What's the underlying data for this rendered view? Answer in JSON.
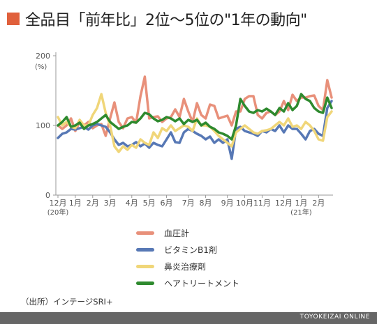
{
  "title": "全品目「前年比」2位～5位の\"1年の動向\"",
  "title_square_color": "#e0603c",
  "source": "（出所）インテージSRI+",
  "footer": "TOYOKEIZAI ONLINE",
  "chart_data": {
    "type": "line",
    "ylim": [
      0,
      200
    ],
    "yticks": [
      0,
      100,
      200
    ],
    "yunit": "(%)",
    "grid": false,
    "legend_placement": "bottom",
    "x_labels": [
      {
        "label": "12月",
        "sub": "(20年)",
        "idx": 0
      },
      {
        "label": "1月",
        "idx": 4
      },
      {
        "label": "2月",
        "idx": 8
      },
      {
        "label": "3月",
        "idx": 12
      },
      {
        "label": "4月",
        "idx": 17
      },
      {
        "label": "5月",
        "idx": 21
      },
      {
        "label": "6月",
        "idx": 25
      },
      {
        "label": "7月",
        "idx": 30
      },
      {
        "label": "8月",
        "idx": 34
      },
      {
        "label": "9月",
        "idx": 39
      },
      {
        "label": "10月",
        "idx": 43
      },
      {
        "label": "11月",
        "idx": 47
      },
      {
        "label": "12月",
        "idx": 52
      },
      {
        "label": "1月",
        "sub": "(21年)",
        "idx": 56
      },
      {
        "label": "2月",
        "idx": 60
      }
    ],
    "series": [
      {
        "name": "血圧計",
        "color": "#e8907a",
        "values": [
          100,
          95,
          100,
          110,
          92,
          105,
          100,
          105,
          96,
          100,
          102,
          85,
          110,
          133,
          105,
          96,
          110,
          112,
          104,
          142,
          170,
          110,
          112,
          113,
          105,
          110,
          112,
          123,
          112,
          138,
          120,
          105,
          132,
          115,
          110,
          130,
          128,
          110,
          112,
          114,
          100,
          120,
          120,
          138,
          142,
          142,
          115,
          110,
          118,
          120,
          115,
          120,
          135,
          122,
          144,
          135,
          140,
          140,
          142,
          143,
          128,
          122,
          165,
          140
        ]
      },
      {
        "name": "ビタミンB1剤",
        "color": "#5778b5",
        "values": [
          82,
          88,
          90,
          95,
          94,
          96,
          98,
          94,
          100,
          102,
          100,
          98,
          90,
          80,
          72,
          75,
          70,
          72,
          76,
          70,
          74,
          68,
          75,
          72,
          70,
          80,
          90,
          76,
          75,
          90,
          95,
          92,
          88,
          85,
          80,
          84,
          75,
          80,
          75,
          80,
          52,
          95,
          98,
          92,
          90,
          88,
          85,
          92,
          90,
          95,
          92,
          100,
          90,
          100,
          95,
          95,
          88,
          80,
          92,
          95,
          88,
          85,
          125,
          135
        ]
      },
      {
        "name": "鼻炎治療剤",
        "color": "#f0d679",
        "values": [
          112,
          100,
          105,
          98,
          96,
          108,
          100,
          100,
          115,
          125,
          145,
          118,
          100,
          70,
          62,
          70,
          65,
          72,
          68,
          80,
          75,
          72,
          90,
          82,
          96,
          92,
          100,
          92,
          96,
          100,
          98,
          92,
          110,
          100,
          100,
          98,
          92,
          85,
          80,
          75,
          70,
          90,
          95,
          100,
          95,
          90,
          88,
          92,
          93,
          95,
          100,
          105,
          100,
          110,
          98,
          100,
          95,
          105,
          100,
          92,
          80,
          78,
          112,
          120
        ]
      },
      {
        "name": "ヘアトリートメント",
        "color": "#2e8a2e",
        "values": [
          100,
          105,
          112,
          98,
          100,
          104,
          95,
          100,
          102,
          105,
          110,
          115,
          105,
          100,
          95,
          98,
          100,
          105,
          104,
          110,
          118,
          116,
          110,
          106,
          108,
          112,
          110,
          106,
          110,
          102,
          108,
          105,
          108,
          100,
          104,
          98,
          95,
          90,
          88,
          85,
          80,
          100,
          138,
          128,
          120,
          118,
          122,
          120,
          124,
          120,
          115,
          125,
          120,
          132,
          122,
          128,
          145,
          138,
          135,
          125,
          120,
          118,
          140,
          125
        ]
      }
    ]
  }
}
